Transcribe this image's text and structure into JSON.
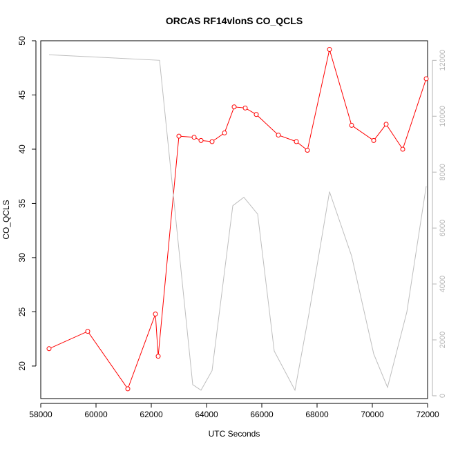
{
  "chart_data": {
    "type": "line",
    "title": "ORCAS RF14vlonS CO_QCLS",
    "xlabel": "UTC Seconds",
    "ylabel": "CO_QCLS",
    "xlim": [
      58000,
      72000
    ],
    "ylim": [
      17,
      50
    ],
    "y2lim": [
      -100,
      12700
    ],
    "x_ticks": [
      58000,
      60000,
      62000,
      64000,
      66000,
      68000,
      70000,
      72000
    ],
    "y_ticks": [
      20,
      25,
      30,
      35,
      40,
      45,
      50
    ],
    "y2_ticks": [
      0,
      2000,
      4000,
      6000,
      8000,
      10000,
      12000
    ],
    "colors": {
      "primary": "#ff0000",
      "secondary": "#bebebe",
      "axis": "#000000",
      "secondary_axis": "#b3b3b3"
    },
    "series": [
      {
        "axis": "left",
        "style": "line+points",
        "x": [
          58300,
          59700,
          61150,
          62150,
          62250,
          63000,
          63550,
          63800,
          64200,
          64650,
          65000,
          65400,
          65800,
          66600,
          67250,
          67650,
          68450,
          69250,
          70050,
          70500,
          71100,
          71950
        ],
        "y": [
          21.6,
          23.2,
          17.9,
          24.8,
          20.9,
          41.2,
          41.1,
          40.8,
          40.7,
          41.5,
          43.9,
          43.8,
          43.2,
          41.3,
          40.7,
          39.9,
          49.2,
          42.2,
          40.8,
          42.3,
          40.0,
          46.5
        ]
      },
      {
        "axis": "right",
        "style": "line",
        "x": [
          58300,
          62300,
          63500,
          63800,
          64200,
          64950,
          65350,
          65850,
          66450,
          67200,
          67700,
          68450,
          69250,
          70050,
          70550,
          71250,
          71950
        ],
        "y": [
          12200,
          12000,
          400,
          200,
          900,
          6800,
          7100,
          6500,
          1600,
          200,
          2900,
          7300,
          5000,
          1500,
          300,
          3000,
          7500
        ]
      }
    ]
  }
}
